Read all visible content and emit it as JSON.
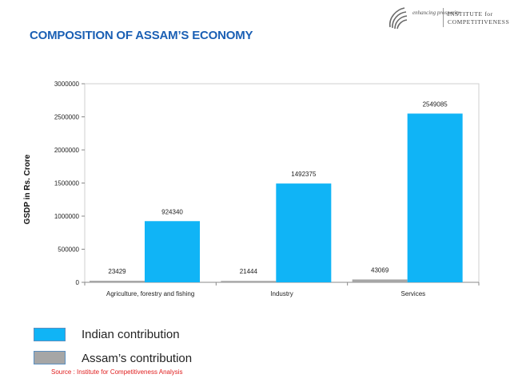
{
  "header": {
    "logo_tagline": "enhancing prosperity",
    "logo_institute": "INSTITUTE for COMPETITIVENESS",
    "title": "COMPOSITION OF ASSAM’S ECONOMY"
  },
  "chart_data": {
    "type": "bar",
    "title": "",
    "xlabel": "",
    "ylabel": "GSDP in Rs. Crore",
    "ylim": [
      0,
      3000000
    ],
    "yticks": [
      "0",
      "500000",
      "1000000",
      "1500000",
      "2000000",
      "2500000",
      "3000000"
    ],
    "categories": [
      "Agriculture, forestry and fishing",
      "Industry",
      "Services"
    ],
    "series": [
      {
        "name": "Assam’s contribution",
        "color": "#a6a6a6",
        "values": [
          23429,
          21444,
          43069
        ]
      },
      {
        "name": "Indian contribution",
        "color": "#10b4f6",
        "values": [
          924340,
          1492375,
          2549085
        ]
      }
    ],
    "data_labels": true,
    "grid": false,
    "legend": "bottom-left"
  },
  "legend": {
    "indian_label": "Indian contribution",
    "assam_label": "Assam’s contribution",
    "indian_color": "#10b4f6",
    "assam_color": "#a6a6a6"
  },
  "source": "Source : Institute for Competitiveness Analysis"
}
